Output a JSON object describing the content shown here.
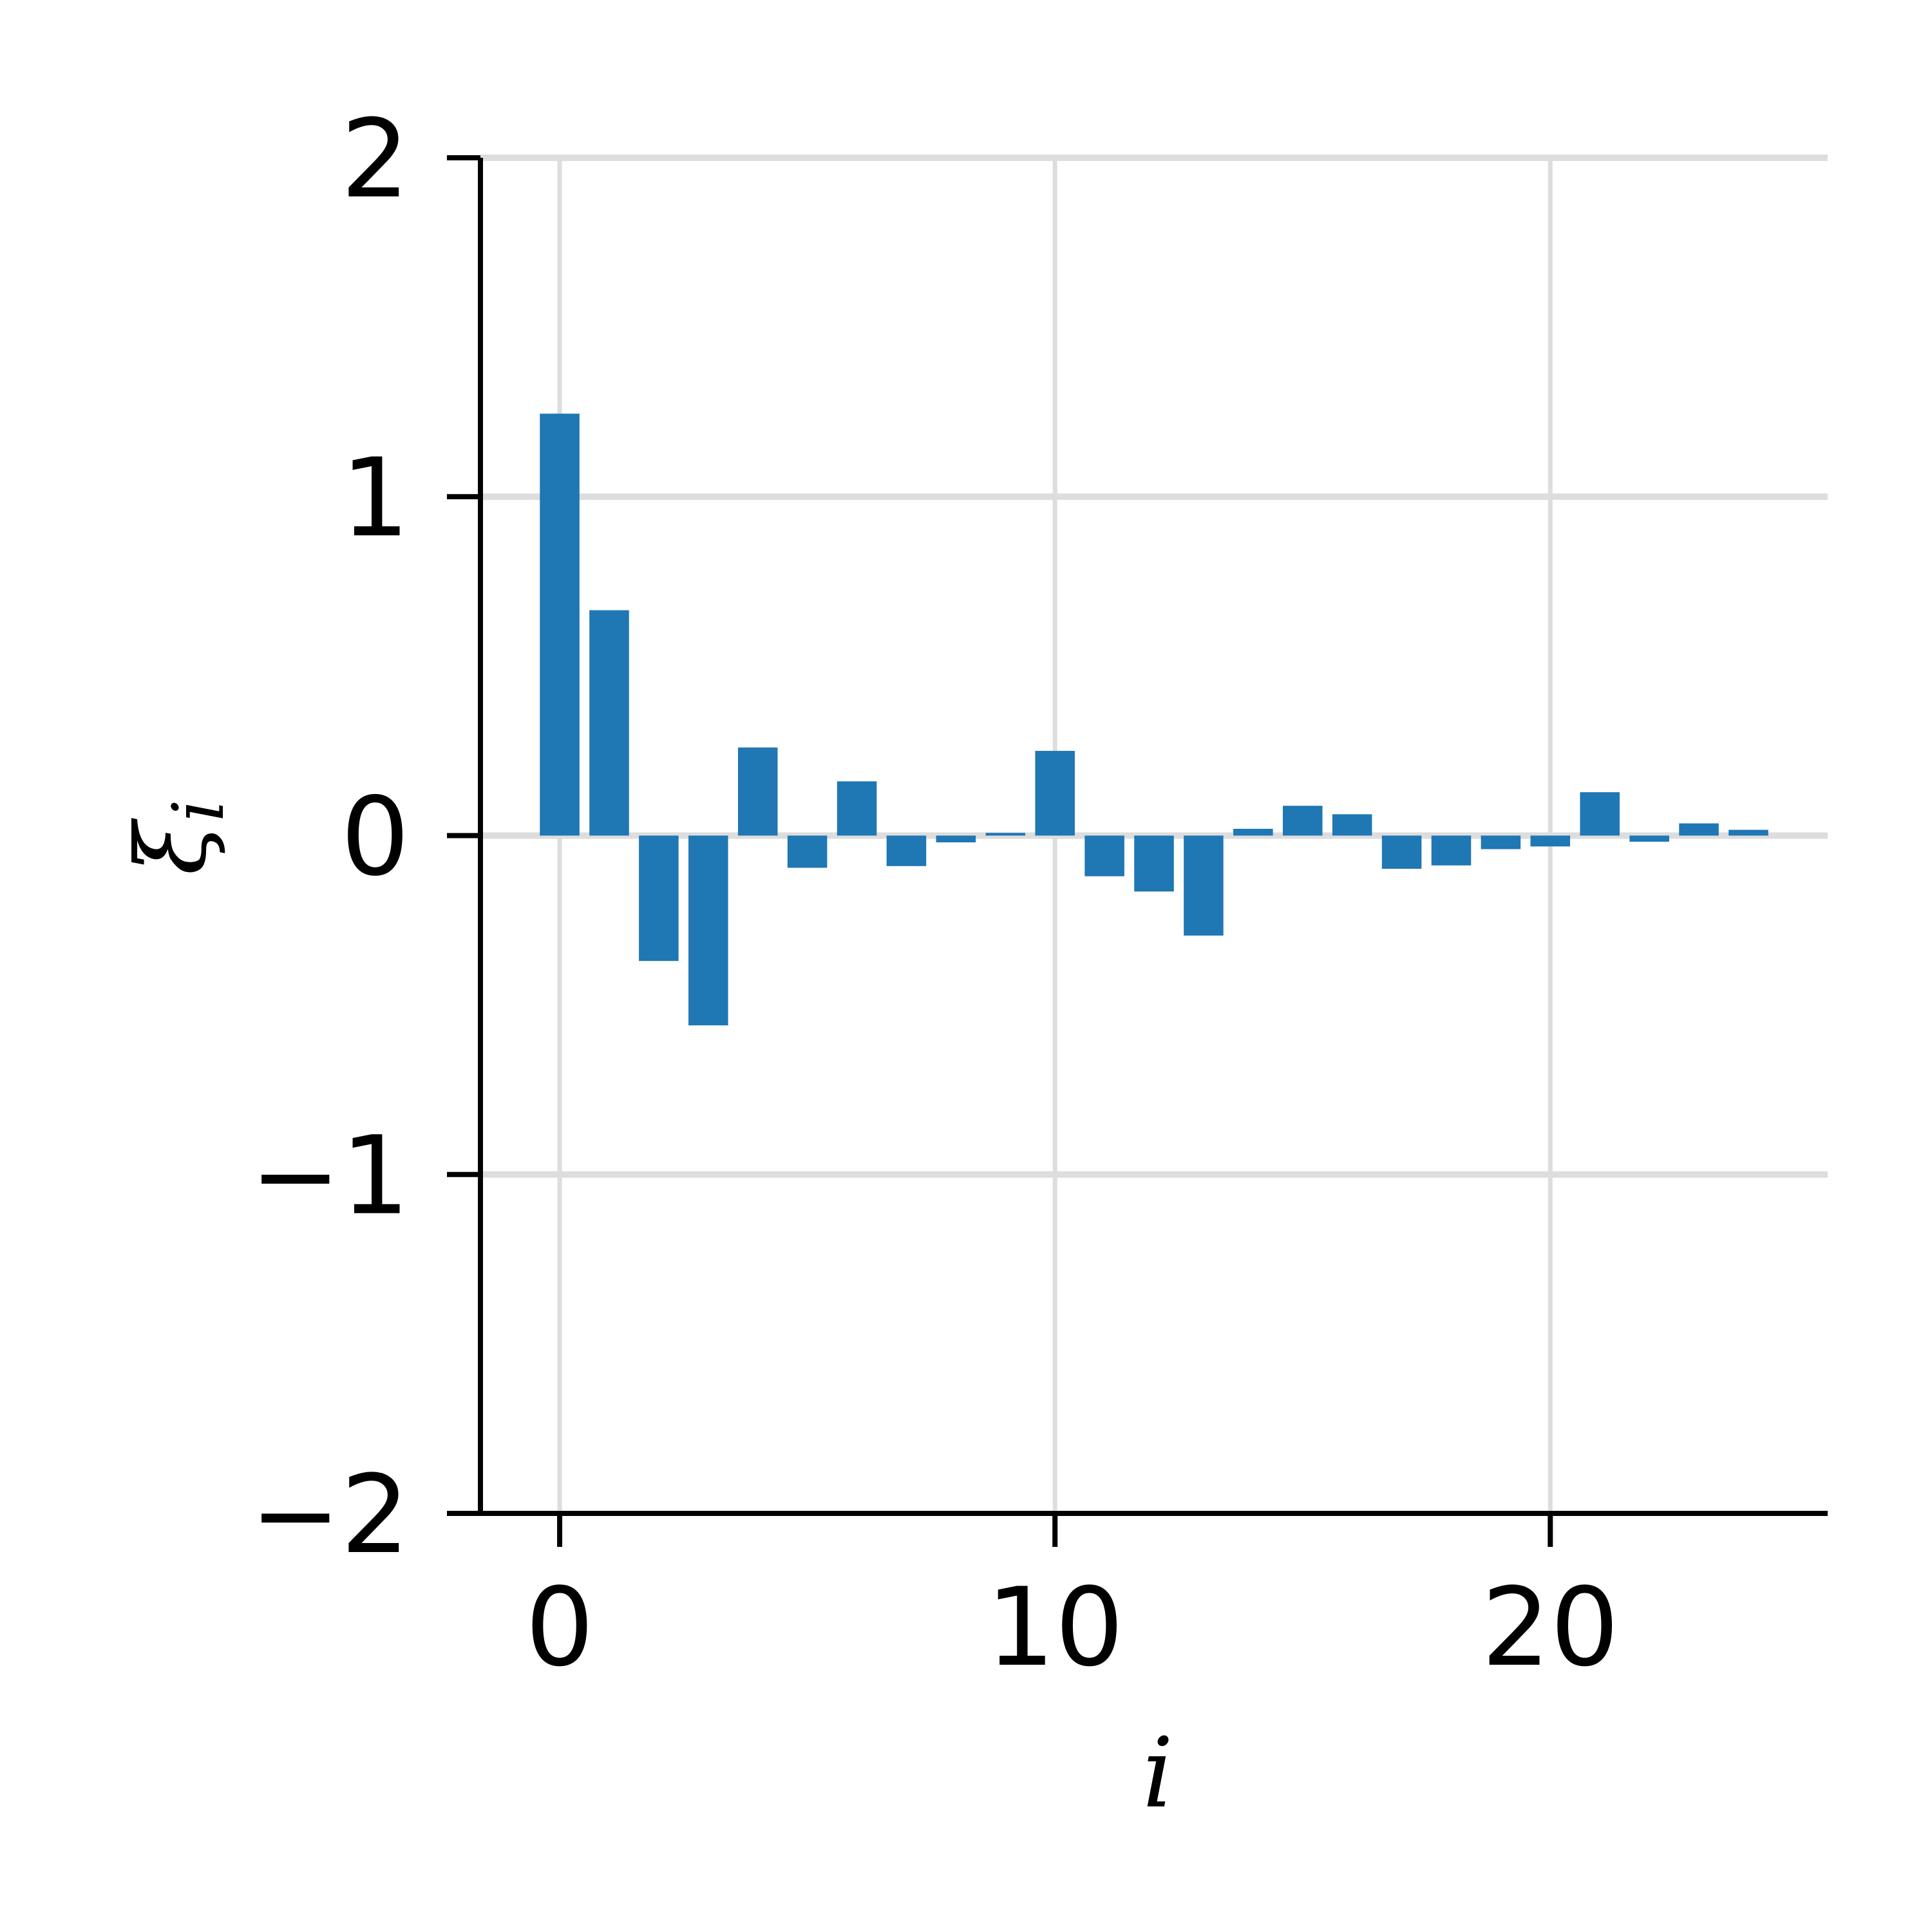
{
  "chart_data": {
    "type": "bar",
    "title": "",
    "xlabel": "i",
    "ylabel": "ξ",
    "ylabel_subscript": "i",
    "xlim": [
      -1.6,
      25.6
    ],
    "ylim": [
      -2,
      2
    ],
    "xticks": [
      0,
      10,
      20
    ],
    "xtick_labels": [
      "0",
      "10",
      "20"
    ],
    "yticks": [
      2,
      1,
      0,
      -1,
      -2
    ],
    "ytick_labels": [
      "2",
      "1",
      "0",
      "−1",
      "−2"
    ],
    "grid": true,
    "bar_color": "#1f77b4",
    "grid_color": "#dddddd",
    "categories": [
      0,
      1,
      2,
      3,
      4,
      5,
      6,
      7,
      8,
      9,
      10,
      11,
      12,
      13,
      14,
      15,
      16,
      17,
      18,
      19,
      20,
      21,
      22,
      23,
      24
    ],
    "values": [
      1.245,
      0.665,
      -0.37,
      -0.56,
      0.26,
      -0.095,
      0.16,
      -0.09,
      -0.02,
      0.008,
      0.25,
      -0.12,
      -0.165,
      -0.295,
      0.02,
      0.088,
      0.063,
      -0.098,
      -0.088,
      -0.04,
      -0.032,
      0.128,
      -0.018,
      0.036,
      0.017
    ]
  }
}
